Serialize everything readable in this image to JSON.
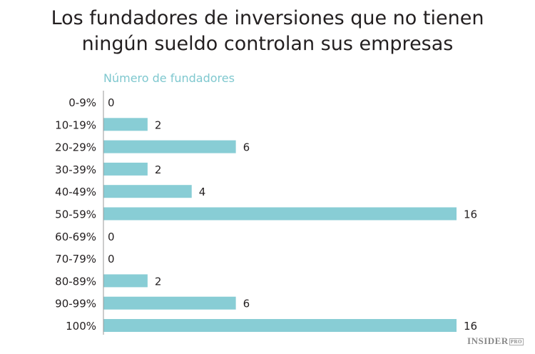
{
  "chart_data": {
    "type": "bar",
    "orientation": "horizontal",
    "title": "Los fundadores de inversiones que no tienen ningún sueldo controlan sus empresas",
    "title_lines": [
      "Los fundadores de inversiones que no tienen",
      "ningún sueldo controlan sus empresas"
    ],
    "subtitle": "Número de fundadores",
    "categories": [
      "0-9%",
      "10-19%",
      "20-29%",
      "30-39%",
      "40-49%",
      "50-59%",
      "60-69%",
      "70-79%",
      "80-89%",
      "90-99%",
      "100%"
    ],
    "values": [
      0,
      2,
      6,
      2,
      4,
      16,
      0,
      0,
      2,
      6,
      16
    ],
    "xlim": [
      0,
      16
    ],
    "grid": false,
    "data_labels": true,
    "colors": {
      "bar": "#88cdd5",
      "subtitle": "#7fc8cf",
      "text": "#231f20",
      "axis": "#999999"
    }
  },
  "logo": {
    "text": "INSIDER",
    "badge": "PRO"
  }
}
